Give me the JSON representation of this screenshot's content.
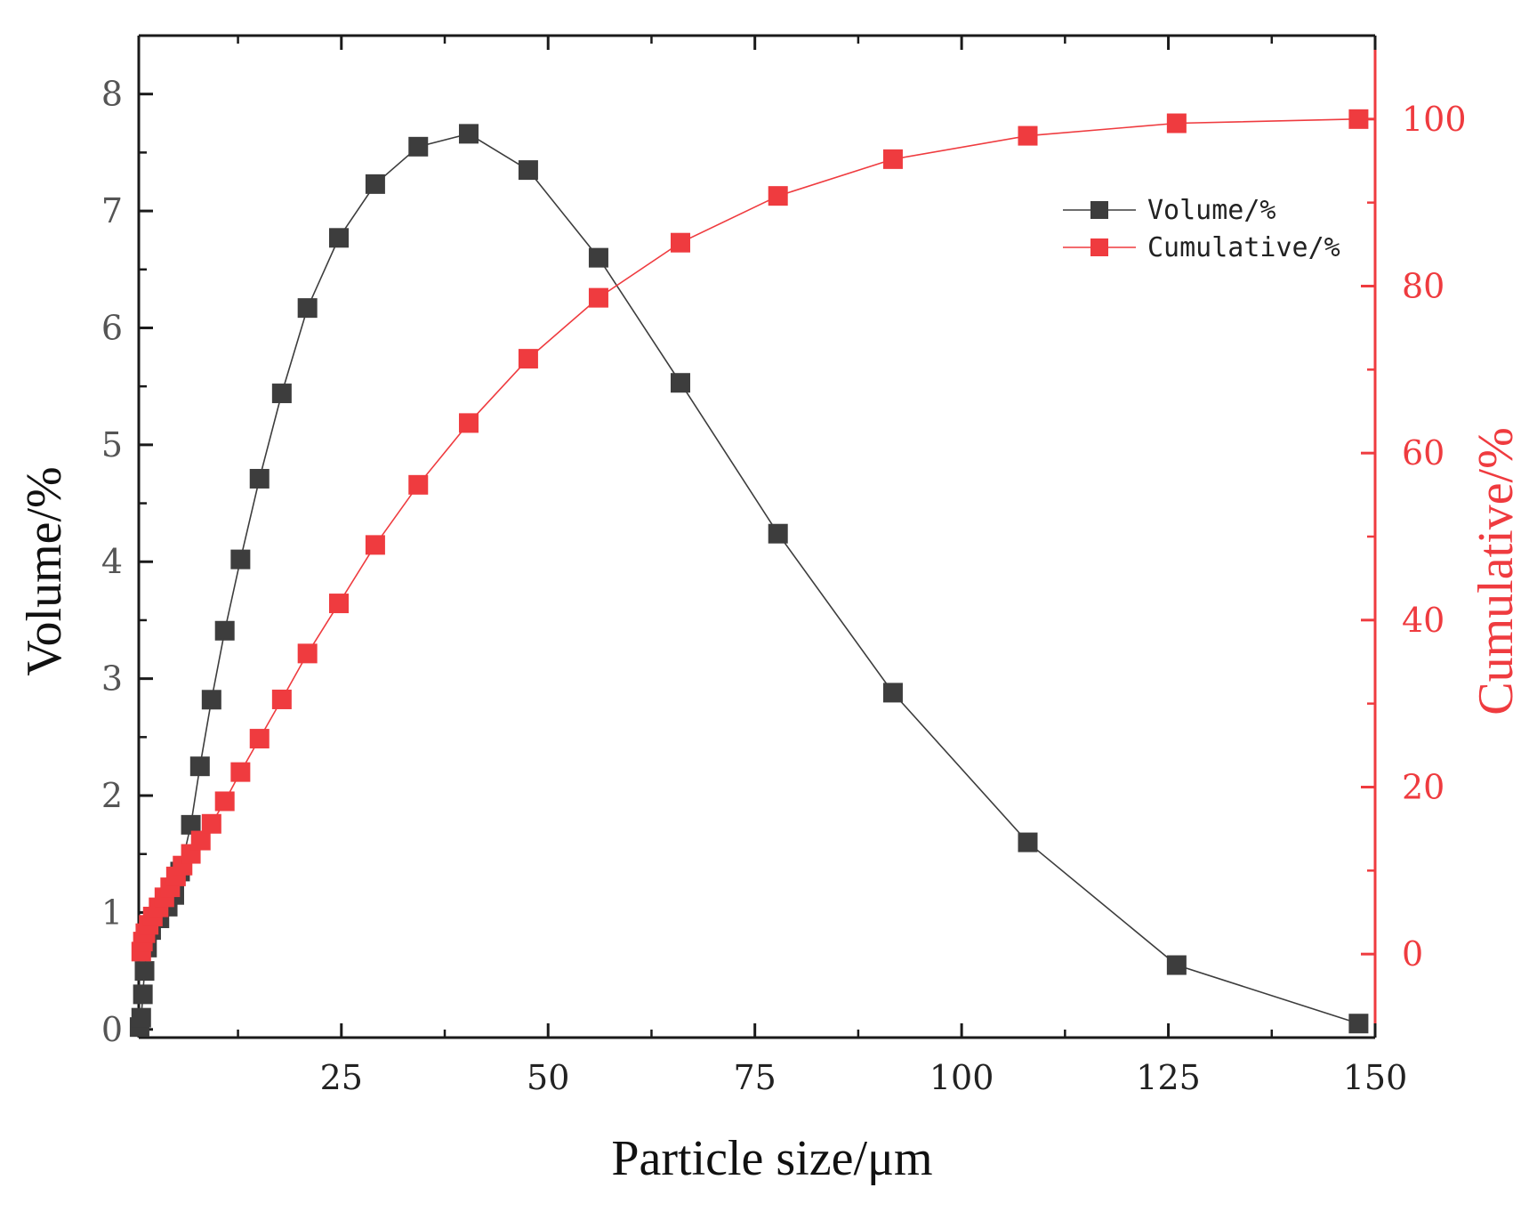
{
  "chart_data": {
    "type": "line",
    "title": "",
    "xlabel": "Particle size/μm",
    "ylabel_left": "Volume/%",
    "ylabel_right": "Cumulative/%",
    "xlim": [
      0.5,
      150
    ],
    "ylim_left": [
      -0.07,
      8.5
    ],
    "ylim_right": [
      -10,
      110
    ],
    "xticks": [
      25,
      50,
      75,
      100,
      125,
      150
    ],
    "yticks_left": [
      0,
      1,
      2,
      3,
      4,
      5,
      6,
      7,
      8
    ],
    "yticks_right": [
      0,
      20,
      40,
      60,
      80,
      100
    ],
    "grid": false,
    "legend_position": "top-right",
    "colors": {
      "volume": "#3d3d3d",
      "cumulative": "#ef3b3f",
      "axis": "#1a1a1a"
    },
    "series": [
      {
        "name": "Volume/%",
        "axis": "left",
        "x": [
          0.6,
          0.8,
          1.0,
          1.2,
          1.5,
          2.0,
          3.0,
          4.0,
          4.8,
          5.5,
          6.8,
          7.9,
          9.3,
          10.9,
          12.8,
          15.1,
          17.8,
          20.9,
          24.7,
          29.1,
          34.3,
          40.4,
          47.6,
          56.1,
          66.0,
          77.8,
          91.7,
          108.0,
          126.0,
          148.0
        ],
        "values": [
          0.02,
          0.1,
          0.3,
          0.5,
          0.7,
          0.85,
          0.95,
          1.05,
          1.15,
          1.35,
          1.75,
          2.25,
          2.82,
          3.41,
          4.02,
          4.71,
          5.44,
          6.17,
          6.77,
          7.23,
          7.55,
          7.66,
          7.35,
          6.6,
          5.53,
          4.24,
          2.88,
          1.6,
          0.55,
          0.05
        ]
      },
      {
        "name": "Cumulative/%",
        "axis": "right",
        "x": [
          0.8,
          1.0,
          1.3,
          1.7,
          2.2,
          2.9,
          3.6,
          4.3,
          5.0,
          5.8,
          6.8,
          8.0,
          9.3,
          10.9,
          12.8,
          15.1,
          17.8,
          20.9,
          24.7,
          29.1,
          34.3,
          40.4,
          47.6,
          56.1,
          66.0,
          77.8,
          91.7,
          108.0,
          126.0,
          148.0
        ],
        "values": [
          0.3,
          1.5,
          2.5,
          3.5,
          4.5,
          5.6,
          6.8,
          8.0,
          9.3,
          10.6,
          12.0,
          13.6,
          15.6,
          18.3,
          21.8,
          25.8,
          30.5,
          36.0,
          42.0,
          49.0,
          56.2,
          63.6,
          71.3,
          78.6,
          85.2,
          90.8,
          95.2,
          98.0,
          99.5,
          100.0
        ]
      }
    ]
  }
}
